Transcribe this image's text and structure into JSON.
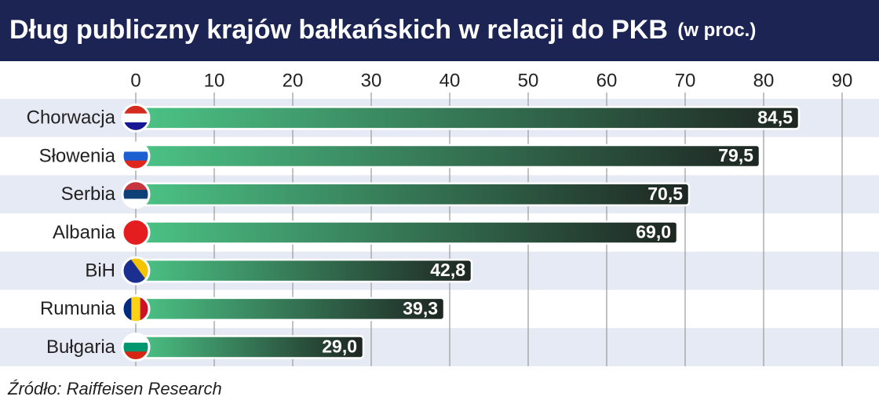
{
  "chart_data": {
    "type": "hbar",
    "title": "Dług publiczny krajów bałkańskich w relacji do PKB",
    "unit_note": "(w proc.)",
    "source": "Źródło: Raiffeisen Research",
    "categories": [
      "Chorwacja",
      "Słowenia",
      "Serbia",
      "Albania",
      "BiH",
      "Rumunia",
      "Bułgaria"
    ],
    "values": [
      84.5,
      79.5,
      70.5,
      69.0,
      42.8,
      39.3,
      29.0
    ],
    "value_labels": [
      "84,5",
      "79,5",
      "70,5",
      "69,0",
      "42,8",
      "39,3",
      "29,0"
    ],
    "color": "#4cc486",
    "color_end": "#1e2622",
    "xlim": [
      0,
      90
    ],
    "xticks": [
      0,
      10,
      20,
      30,
      40,
      50,
      60,
      70,
      80,
      90
    ],
    "grid": true
  }
}
